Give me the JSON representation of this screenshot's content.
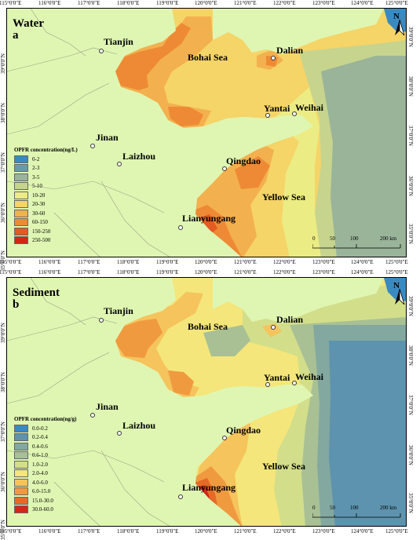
{
  "longitude_ticks": [
    "115°0'0\"E",
    "116°0'0\"E",
    "117°0'0\"E",
    "118°0'0\"E",
    "119°0'0\"E",
    "120°0'0\"E",
    "121°0'0\"E",
    "122°0'0\"E",
    "123°0'0\"E",
    "124°0'0\"E",
    "125°0'0\"E"
  ],
  "latitude_ticks": [
    "39°0'0\"N",
    "38°0'0\"N",
    "37°0'0\"N",
    "36°0'0\"N",
    "35°0'0\"N"
  ],
  "cities": {
    "tianjin": "Tianjin",
    "dalian": "Dalian",
    "yantai": "Yantai",
    "weihai": "Weihai",
    "jinan": "Jinan",
    "laizhou": "Laizhou",
    "qingdao": "Qingdao",
    "lianyungang": "Lianyungang"
  },
  "seas": {
    "bohai": "Bohai Sea",
    "yellow": "Yellow Sea"
  },
  "north_label": "N",
  "scale": {
    "labels": [
      "0",
      "50",
      "100",
      "200 km"
    ]
  },
  "panel_a": {
    "title": "Water",
    "letter": "a",
    "legend_title": "OPFR concentration(ng/L)",
    "legend": [
      {
        "label": "0-2",
        "color": "#3a8ac2"
      },
      {
        "label": "2-3",
        "color": "#6a9aa8"
      },
      {
        "label": "3-5",
        "color": "#9ab49a"
      },
      {
        "label": "5-10",
        "color": "#c6d48e"
      },
      {
        "label": "10-20",
        "color": "#ecec84"
      },
      {
        "label": "20-30",
        "color": "#f5d468"
      },
      {
        "label": "30-60",
        "color": "#f3b04e"
      },
      {
        "label": "60-150",
        "color": "#ee8a35"
      },
      {
        "label": "150-250",
        "color": "#e35a22"
      },
      {
        "label": "250-500",
        "color": "#d42618"
      }
    ]
  },
  "panel_b": {
    "title": "Sediment",
    "letter": "b",
    "legend_title": "OPFR concentration(ng/g)",
    "legend": [
      {
        "label": "0.0-0.2",
        "color": "#3a8ac2"
      },
      {
        "label": "0.2-0.4",
        "color": "#5d93ae"
      },
      {
        "label": "0.4-0.6",
        "color": "#82a8a0"
      },
      {
        "label": "0.6-1.0",
        "color": "#a8c094"
      },
      {
        "label": "1.0-2.0",
        "color": "#d2de8a"
      },
      {
        "label": "2.0-4.0",
        "color": "#f4e67a"
      },
      {
        "label": "4.0-6.0",
        "color": "#f5c45c"
      },
      {
        "label": "6.0-15.0",
        "color": "#f09a40"
      },
      {
        "label": "15.0-30.0",
        "color": "#e56a28"
      },
      {
        "label": "30.0-60.0",
        "color": "#d42618"
      }
    ]
  },
  "colors": {
    "land": "#dff6b2",
    "border": "#9aa08a"
  }
}
